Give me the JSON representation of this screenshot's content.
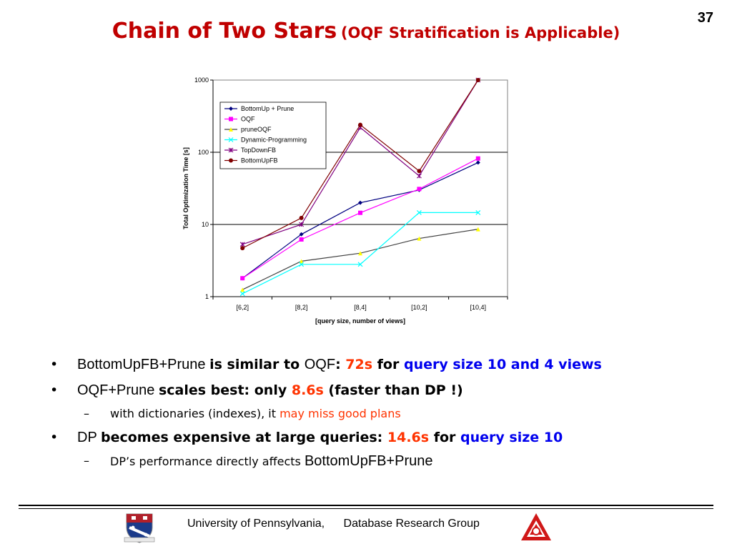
{
  "slide": {
    "page_number": "37",
    "title_main": "Chain of Two Stars",
    "title_sub": "(OQF Stratification is Applicable)"
  },
  "chart_data": {
    "type": "line",
    "title": "",
    "xlabel": "[query size, number of views]",
    "ylabel": "Total Optimization Time [s]",
    "y_scale": "log",
    "ylim": [
      1,
      1000
    ],
    "y_ticks": [
      "1",
      "10",
      "100",
      "1000"
    ],
    "categories": [
      "[6,2]",
      "[8,2]",
      "[8,4]",
      "[10,2]",
      "[10,4]"
    ],
    "grid": "horizontal major gridlines",
    "legend_position": "top-left inside plot",
    "series": [
      {
        "name": "BottomUp + Prune",
        "values": [
          1.8,
          7.3,
          20,
          30,
          72
        ],
        "color": "#000080",
        "marker": "diamond"
      },
      {
        "name": "OQF",
        "values": [
          1.8,
          6.2,
          14.5,
          31,
          82
        ],
        "color": "#ff00ff",
        "marker": "square"
      },
      {
        "name": "pruneOQF",
        "values": [
          1.25,
          3.1,
          4.0,
          6.4,
          8.6
        ],
        "color": "#404040",
        "marker": "triangle",
        "marker_color": "#ffff00"
      },
      {
        "name": "Dynamic-Programming",
        "values": [
          1.1,
          2.8,
          2.8,
          14.6,
          14.6
        ],
        "color": "#00ffff",
        "marker": "x"
      },
      {
        "name": "TopDownFB",
        "values": [
          5.3,
          10,
          220,
          47,
          1000
        ],
        "color": "#800080",
        "marker": "star"
      },
      {
        "name": "BottomUpFB",
        "values": [
          4.7,
          12.3,
          240,
          55,
          1000
        ],
        "color": "#800000",
        "marker": "circle"
      }
    ]
  },
  "bullets": [
    {
      "level": 1,
      "marker": "•",
      "parts": [
        {
          "text": "BottomUpFB+Prune ",
          "style": "plain"
        },
        {
          "text": "is similar to ",
          "style": "b"
        },
        {
          "text": "OQF",
          "style": "plain"
        },
        {
          "text": ": ",
          "style": "b"
        },
        {
          "text": "72s",
          "style": "b red"
        },
        {
          "text": " for ",
          "style": "b"
        },
        {
          "text": "query size 10 and 4 views",
          "style": "b blue"
        }
      ]
    },
    {
      "level": 1,
      "marker": "•",
      "parts": [
        {
          "text": "OQF+Prune ",
          "style": "plain"
        },
        {
          "text": "scales best: ",
          "style": "b"
        },
        {
          "text": "only ",
          "style": "b"
        },
        {
          "text": "8.6s",
          "style": "b red"
        },
        {
          "text": " (faster than DP !)",
          "style": "b"
        }
      ]
    },
    {
      "level": 2,
      "marker": "–",
      "parts": [
        {
          "text": "with dictionaries (indexes), it ",
          "style": ""
        },
        {
          "text": "may miss good plans",
          "style": "orange"
        }
      ]
    },
    {
      "level": 1,
      "marker": "•",
      "parts": [
        {
          "text": "DP ",
          "style": "plain"
        },
        {
          "text": "becomes expensive at large queries: ",
          "style": "b"
        },
        {
          "text": "14.6s",
          "style": "b red"
        },
        {
          "text": " for ",
          "style": "b"
        },
        {
          "text": "query size 10",
          "style": "b blue"
        }
      ]
    },
    {
      "level": 2,
      "marker": "–",
      "parts": [
        {
          "text": "DP’s performance directly affects ",
          "style": ""
        },
        {
          "text": "BottomUpFB+Prune",
          "style": "plain"
        }
      ]
    }
  ],
  "footer": {
    "university": "University of Pennsylvania,",
    "group": "Database Research Group"
  }
}
